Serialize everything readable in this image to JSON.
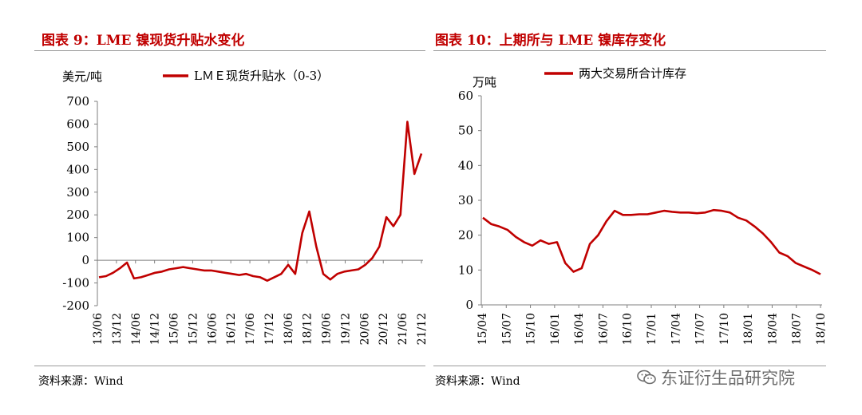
{
  "left_panel": {
    "figure_title": "图表 9：LME 镍现货升贴水变化",
    "source": "资料来源：Wind"
  },
  "right_panel": {
    "figure_title": "图表 10：上期所与 LME 镍库存变化",
    "source": "资料来源：Wind"
  },
  "watermark": {
    "text": "东证衍生品研究院",
    "icon": "wechat-icon"
  },
  "colors": {
    "series": "#c00000",
    "title": "#c00000",
    "axis": "#7f7f7f"
  },
  "chart_data": [
    {
      "type": "line",
      "title": "",
      "ylabel": "美元/吨",
      "xlabel": "",
      "ylim": [
        -200,
        700
      ],
      "yticks": [
        -200,
        -100,
        0,
        100,
        200,
        300,
        400,
        500,
        600,
        700
      ],
      "x_tick_labels": [
        "13/06",
        "13/12",
        "14/06",
        "14/12",
        "15/06",
        "15/12",
        "16/06",
        "16/12",
        "17/06",
        "17/12",
        "18/06",
        "18/12",
        "19/06",
        "19/12",
        "20/06",
        "20/12",
        "21/06",
        "21/12"
      ],
      "legend": {
        "position": "top",
        "entries": [
          "LＭＥ现货升贴水（0-3）"
        ]
      },
      "grid": false,
      "series": [
        {
          "name": "LＭＥ现货升贴水（0-3）",
          "x": [
            "13/06",
            "13/09",
            "13/12",
            "14/03",
            "14/05",
            "14/06",
            "14/07",
            "14/09",
            "14/12",
            "15/03",
            "15/06",
            "15/09",
            "15/12",
            "16/03",
            "16/06",
            "16/09",
            "16/12",
            "17/03",
            "17/06",
            "17/09",
            "17/12",
            "18/03",
            "18/06",
            "18/09",
            "18/12",
            "19/03",
            "19/05",
            "19/06",
            "19/08",
            "19/10",
            "19/11",
            "19/12",
            "20/01",
            "20/03",
            "20/06",
            "20/09",
            "20/12",
            "21/03",
            "21/05",
            "21/07",
            "21/09",
            "21/10",
            "21/11",
            "21/12",
            "22/01",
            "22/02",
            "22/03"
          ],
          "values": [
            -75,
            -70,
            -55,
            -35,
            -10,
            -80,
            -75,
            -65,
            -55,
            -50,
            -40,
            -35,
            -30,
            -35,
            -40,
            -45,
            -45,
            -50,
            -55,
            -60,
            -65,
            -60,
            -70,
            -75,
            -90,
            -75,
            -60,
            -20,
            -60,
            120,
            215,
            60,
            -60,
            -85,
            -60,
            -50,
            -45,
            -40,
            -20,
            10,
            60,
            190,
            150,
            200,
            610,
            380,
            470
          ]
        }
      ]
    },
    {
      "type": "line",
      "title": "",
      "ylabel": "万吨",
      "xlabel": "",
      "ylim": [
        0,
        60
      ],
      "yticks": [
        0,
        10,
        20,
        30,
        40,
        50,
        60
      ],
      "x_tick_labels": [
        "15/04",
        "15/07",
        "15/10",
        "16/01",
        "16/04",
        "16/07",
        "16/10",
        "17/01",
        "17/04",
        "17/07",
        "17/10",
        "18/01",
        "18/04",
        "18/07",
        "18/10"
      ],
      "legend": {
        "position": "top",
        "entries": [
          "两大交易所合计库存"
        ]
      },
      "grid": false,
      "series": [
        {
          "name": "两大交易所合计库存",
          "x": [
            "15/04",
            "15/06",
            "15/08",
            "15/10",
            "15/12",
            "16/01",
            "16/02",
            "16/03",
            "16/04",
            "16/05",
            "16/05b",
            "16/06",
            "16/07",
            "16/07b",
            "16/08",
            "16/09",
            "16/10",
            "16/11",
            "16/12",
            "17/01",
            "17/02",
            "17/03",
            "17/04",
            "17/05",
            "17/06",
            "17/07",
            "17/08",
            "17/09",
            "17/10",
            "17/11",
            "17/12",
            "18/01",
            "18/02",
            "18/03",
            "18/04",
            "18/05",
            "18/06",
            "18/07",
            "18/08",
            "18/09",
            "18/10",
            "18/11"
          ],
          "values": [
            25,
            23.2,
            22.5,
            21.5,
            19.5,
            18,
            17,
            18.5,
            17.5,
            18,
            12,
            9.5,
            10.5,
            17.5,
            20,
            24,
            27,
            25.8,
            25.8,
            26,
            26,
            26.5,
            27,
            26.7,
            26.5,
            26.5,
            26.3,
            26.5,
            27.2,
            27,
            26.5,
            25,
            24.2,
            22.5,
            20.5,
            18,
            15,
            14,
            12,
            11,
            10,
            8.8
          ]
        }
      ]
    }
  ]
}
